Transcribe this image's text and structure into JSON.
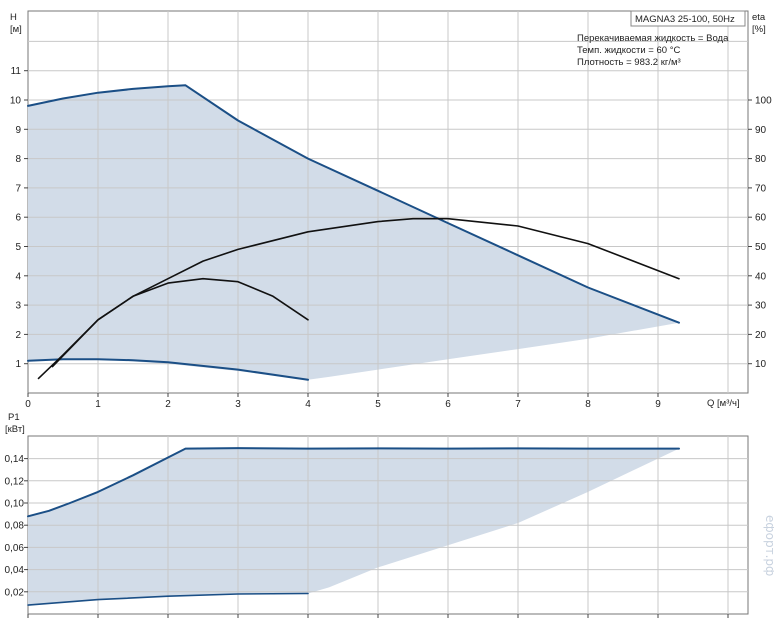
{
  "chart_data": [
    {
      "type": "line",
      "title": "MAGNA3 25-100, 50Hz",
      "annotations": [
        "Перекачиваемая жидкость = Вода",
        "Темп. жидкости = 60 °C",
        "Плотность = 983.2 кг/м³"
      ],
      "xlabel": "Q [м³/ч]",
      "ylabel": "H",
      "ylabel_unit": "[м]",
      "y2label": "eta",
      "y2label_unit": "[%]",
      "xlim": [
        0,
        10.2
      ],
      "ylim": [
        0,
        12
      ],
      "y2lim": [
        0,
        120
      ],
      "x_ticks": [
        "0",
        "1",
        "2",
        "3",
        "4",
        "5",
        "6",
        "7",
        "8",
        "9"
      ],
      "y_ticks": [
        "1",
        "2",
        "3",
        "4",
        "5",
        "6",
        "7",
        "8",
        "9",
        "10",
        "11"
      ],
      "y2_ticks": [
        "10",
        "20",
        "30",
        "40",
        "50",
        "60",
        "70",
        "80",
        "90",
        "100"
      ],
      "grid": true,
      "colors": {
        "envelope_fill": "#d2dce8",
        "head_line": "#1b4f86",
        "eta_line": "#111111"
      },
      "envelope": {
        "upper": {
          "x": [
            0,
            0.5,
            1,
            1.5,
            2,
            2.25,
            3,
            4,
            5,
            6,
            7,
            8,
            9.3
          ],
          "y": [
            9.8,
            10.05,
            10.25,
            10.38,
            10.47,
            10.5,
            9.3,
            8.0,
            6.9,
            5.8,
            4.7,
            3.6,
            2.4
          ]
        },
        "lower": {
          "x": [
            9.3,
            8,
            7,
            6,
            5,
            4.3,
            4,
            3,
            2,
            1,
            0.5,
            0
          ],
          "y": [
            2.4,
            1.85,
            1.5,
            1.15,
            0.8,
            0.55,
            0.45,
            0.75,
            1.0,
            1.15,
            1.15,
            1.1
          ]
        }
      },
      "series": [
        {
          "x": [
            0,
            0.5,
            1,
            1.5,
            2,
            2.25,
            3,
            4,
            5,
            6,
            7,
            8,
            9.3
          ],
          "y": [
            9.8,
            10.05,
            10.25,
            10.38,
            10.47,
            10.5,
            9.3,
            8.0,
            6.9,
            5.8,
            4.7,
            3.6,
            2.4
          ],
          "axis": "left",
          "role": "head"
        },
        {
          "x": [
            0,
            0.5,
            1,
            1.5,
            2,
            3,
            4
          ],
          "y": [
            1.1,
            1.15,
            1.15,
            1.12,
            1.05,
            0.8,
            0.45
          ],
          "axis": "left",
          "role": "head"
        },
        {
          "x": [
            9.3,
            8,
            7,
            6,
            5,
            4.3
          ],
          "y": [
            2.4,
            1.85,
            1.5,
            1.15,
            0.8,
            0.55
          ],
          "axis": "left",
          "role": "edge"
        },
        {
          "x": [
            0.15,
            0.5,
            1,
            1.5,
            2,
            2.5,
            3,
            4,
            5,
            5.5,
            6,
            7,
            8,
            9.3
          ],
          "y": [
            5,
            13,
            25,
            33,
            39,
            45,
            49,
            55,
            58.5,
            59.5,
            59.5,
            57,
            51,
            39
          ],
          "axis": "right",
          "role": "eta"
        },
        {
          "x": [
            0.35,
            1,
            1.5,
            2,
            2.5,
            3,
            3.5,
            4
          ],
          "y": [
            9,
            25,
            33,
            37.5,
            39,
            38,
            33,
            25
          ],
          "axis": "right",
          "role": "eta"
        }
      ]
    },
    {
      "type": "area",
      "ylabel": "P1",
      "ylabel_unit": "[кВт]",
      "xlim": [
        0,
        10.2
      ],
      "ylim": [
        0,
        0.17
      ],
      "y_ticks": [
        "0,02",
        "0,04",
        "0,06",
        "0,08",
        "0,10",
        "0,12",
        "0,14"
      ],
      "grid": true,
      "envelope": {
        "upper": {
          "x": [
            0,
            0.3,
            0.6,
            1,
            1.5,
            2,
            2.25,
            3,
            4,
            5,
            6,
            7,
            8,
            9.3
          ],
          "y": [
            0.088,
            0.093,
            0.1,
            0.11,
            0.125,
            0.141,
            0.149,
            0.1495,
            0.149,
            0.1492,
            0.149,
            0.1492,
            0.149,
            0.149
          ]
        },
        "lower": {
          "x": [
            9.3,
            8,
            7,
            6,
            5,
            4.3,
            4,
            3,
            2,
            1,
            0
          ],
          "y": [
            0.149,
            0.11,
            0.082,
            0.062,
            0.042,
            0.024,
            0.0185,
            0.018,
            0.016,
            0.013,
            0.008
          ]
        }
      },
      "series": [
        {
          "x": [
            0,
            0.3,
            0.6,
            1,
            1.5,
            2,
            2.25,
            3,
            4,
            5,
            6,
            7,
            8,
            9.3
          ],
          "y": [
            0.088,
            0.093,
            0.1,
            0.11,
            0.125,
            0.141,
            0.149,
            0.1495,
            0.149,
            0.1492,
            0.149,
            0.1492,
            0.149,
            0.149
          ],
          "role": "power_max"
        },
        {
          "x": [
            0,
            1,
            2,
            3,
            4
          ],
          "y": [
            0.008,
            0.013,
            0.016,
            0.018,
            0.0185
          ],
          "role": "power_min"
        }
      ]
    }
  ],
  "watermark": "ефорт.рф"
}
